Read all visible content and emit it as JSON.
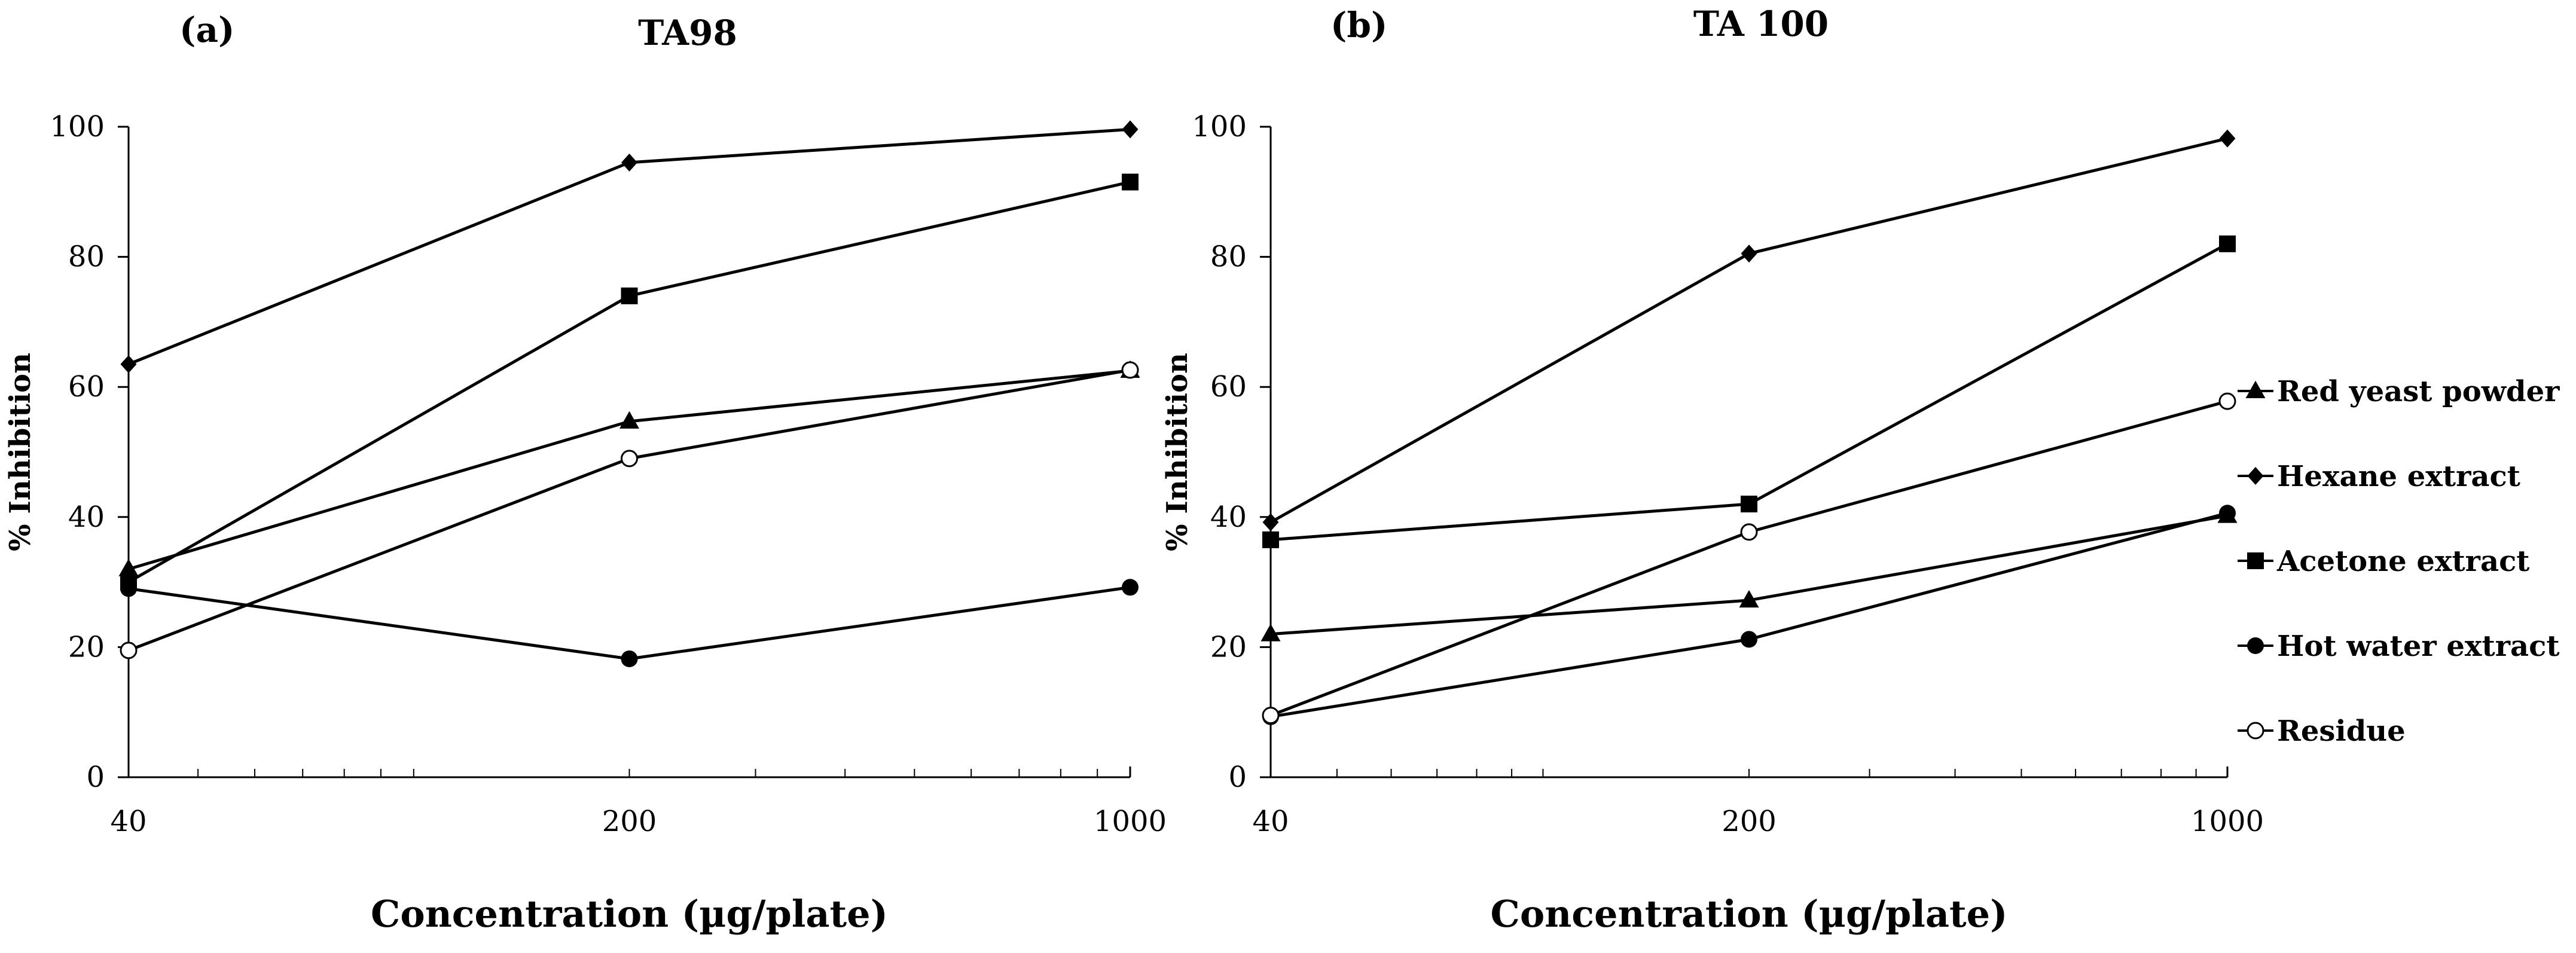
{
  "chart_data": [
    {
      "type": "line",
      "panel": "(a)",
      "title": "TA98",
      "xlabel": "Concentration (µg/plate)",
      "ylabel": "% Inhibition",
      "xscale": "log",
      "x": [
        40,
        200,
        1000
      ],
      "x_tick_labels": [
        "40",
        "200",
        "1000"
      ],
      "ylim": [
        0,
        100
      ],
      "y_ticks": [
        0,
        20,
        40,
        60,
        80,
        100
      ],
      "grid": false,
      "series": [
        {
          "name": "Red yeast powder",
          "marker": "triangle",
          "values": [
            32,
            54.7,
            62.5
          ]
        },
        {
          "name": "Hexane extract",
          "marker": "diamond",
          "values": [
            63.5,
            94.5,
            99.6
          ]
        },
        {
          "name": "Acetone extract",
          "marker": "square",
          "values": [
            30,
            74,
            91.5
          ]
        },
        {
          "name": "Hot water extract",
          "marker": "circle",
          "values": [
            29,
            18.2,
            29.2
          ]
        },
        {
          "name": "Residue",
          "marker": "open-circle",
          "values": [
            19.5,
            49,
            62.6
          ]
        }
      ]
    },
    {
      "type": "line",
      "panel": "(b)",
      "title": "TA 100",
      "xlabel": "Concentration (µg/plate)",
      "ylabel": "% Inhibition",
      "xscale": "log",
      "x": [
        40,
        200,
        1000
      ],
      "x_tick_labels": [
        "40",
        "200",
        "1000"
      ],
      "ylim": [
        0,
        100
      ],
      "y_ticks": [
        0,
        20,
        40,
        60,
        80,
        100
      ],
      "grid": false,
      "legend_position": "right",
      "series": [
        {
          "name": "Red yeast powder",
          "marker": "triangle",
          "values": [
            22,
            27.2,
            40.2
          ]
        },
        {
          "name": "Hexane extract",
          "marker": "diamond",
          "values": [
            39.2,
            80.5,
            98.2
          ]
        },
        {
          "name": "Acetone extract",
          "marker": "square",
          "values": [
            36.5,
            42,
            82
          ]
        },
        {
          "name": "Hot water extract",
          "marker": "circle",
          "values": [
            9.3,
            21.2,
            40.6
          ]
        },
        {
          "name": "Residue",
          "marker": "open-circle",
          "values": [
            9.5,
            37.7,
            57.8
          ]
        }
      ]
    }
  ]
}
